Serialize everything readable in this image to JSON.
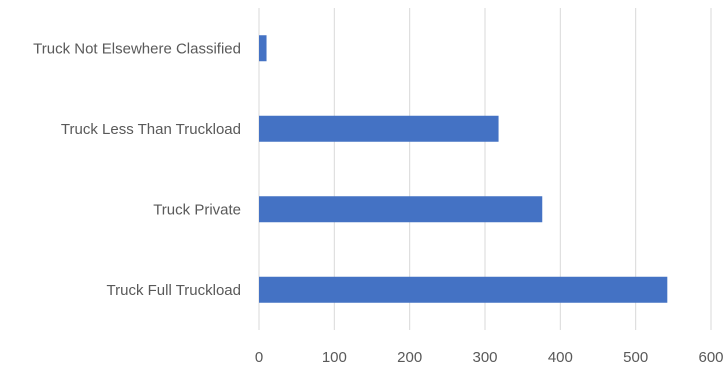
{
  "chart_data": {
    "type": "bar",
    "orientation": "horizontal",
    "categories": [
      "Truck Not Elsewhere Classified",
      "Truck Less Than Truckload",
      "Truck Private",
      "Truck Full Truckload"
    ],
    "values": [
      10,
      318,
      376,
      542
    ],
    "xlim": [
      0,
      600
    ],
    "xticks": [
      "0",
      "100",
      "200",
      "300",
      "400",
      "500",
      "600"
    ],
    "grid": true,
    "legend": "none",
    "bar_color": "#4472C4",
    "grid_color": "#D9D9D9",
    "text_color": "#595959"
  }
}
